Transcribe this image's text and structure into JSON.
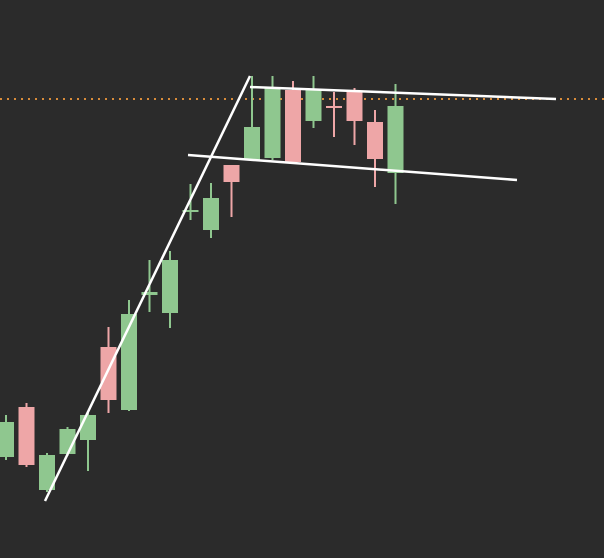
{
  "chart_data": {
    "type": "candlestick",
    "open": [
      101,
      151,
      68,
      104,
      118,
      211,
      148,
      263,
      245,
      346,
      328,
      393,
      398,
      400,
      468,
      437,
      452,
      466,
      436,
      385
    ],
    "high": [
      143,
      155,
      105,
      131,
      145,
      231,
      258,
      298,
      307,
      374,
      375,
      393,
      482,
      482,
      477,
      482,
      466,
      470,
      448,
      474
    ],
    "low": [
      98,
      91,
      66,
      102,
      87,
      145,
      147,
      246,
      230,
      338,
      320,
      341,
      397,
      398,
      394,
      430,
      421,
      413,
      371,
      354
    ],
    "close": [
      136,
      93,
      103,
      129,
      143,
      158,
      244,
      266,
      298,
      348,
      360,
      376,
      431,
      470,
      396,
      469,
      450,
      437,
      399,
      452
    ],
    "up_color": "#8fc78f",
    "down_color": "#eea6a7",
    "ylim": [
      0,
      558
    ]
  }
}
